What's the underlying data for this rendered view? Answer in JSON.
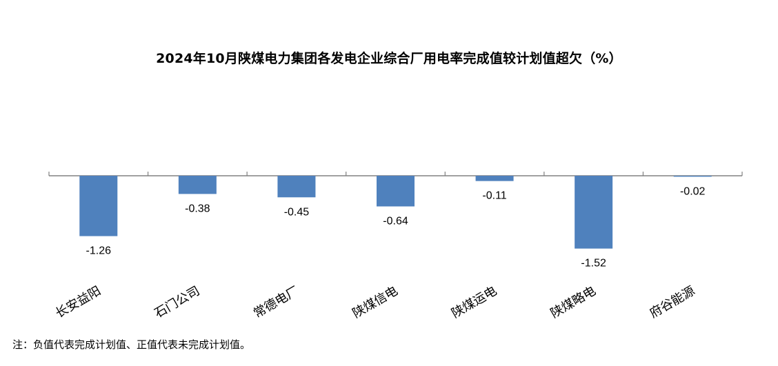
{
  "chart_data": {
    "type": "bar",
    "title": "2024年10月陕煤电力集团各发电企业综合厂用电率完成值较计划值超欠（%）",
    "categories": [
      "长安益阳",
      "石门公司",
      "常德电厂",
      "陕煤信电",
      "陕煤运电",
      "陕煤略电",
      "府谷能源"
    ],
    "values": [
      -1.26,
      -0.38,
      -0.45,
      -0.64,
      -0.11,
      -1.52,
      -0.02
    ],
    "data_labels": [
      "-1.26",
      "-0.38",
      "-0.45",
      "-0.64",
      "-0.11",
      "-1.52",
      "-0.02"
    ],
    "xlabel": "",
    "ylabel": "",
    "ylim": [
      -1.52,
      0
    ],
    "grid": false,
    "legend": "none",
    "bar_color": "#4F81BD",
    "axis_color": "#808080"
  },
  "footnote": "注：负值代表完成计划值、正值代表未完成计划值。"
}
